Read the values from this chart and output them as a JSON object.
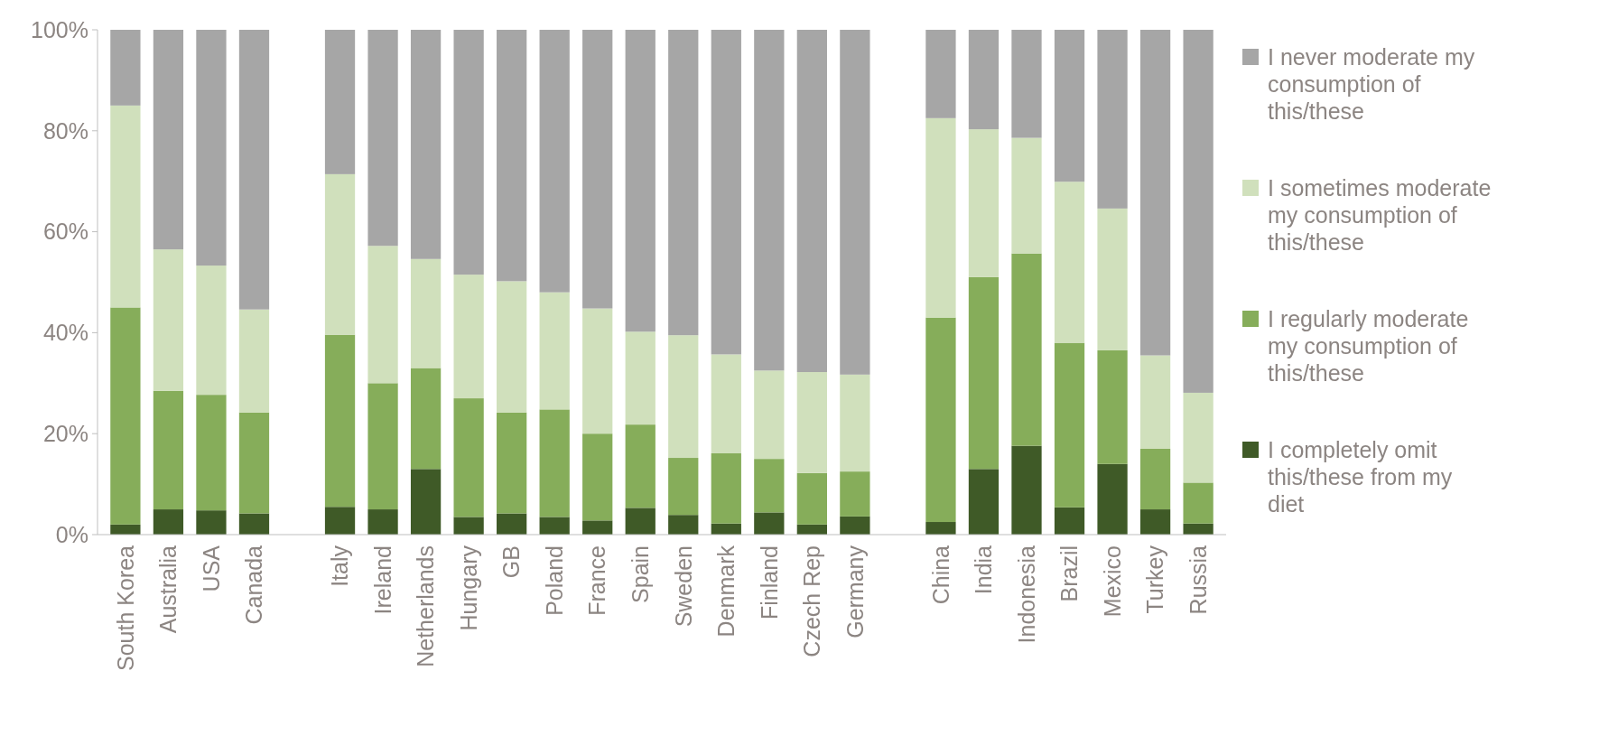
{
  "chart_data": {
    "type": "bar",
    "stacked": true,
    "legend": "right",
    "grid": false,
    "categories": [
      "South Korea",
      "Australia",
      "USA",
      "Canada",
      null,
      "Italy",
      "Ireland",
      "Netherlands",
      "Hungary",
      "GB",
      "Poland",
      "France",
      "Spain",
      "Sweden",
      "Denmark",
      "Finland",
      "Czech Rep",
      "Germany",
      null,
      "China",
      "India",
      "Indonesia",
      "Brazil",
      "Mexico",
      "Turkey",
      "Russia"
    ],
    "ylim": [
      0,
      100
    ],
    "yticks": [
      {
        "value": 0,
        "label": "0%"
      },
      {
        "value": 20,
        "label": "20%"
      },
      {
        "value": 40,
        "label": "40%"
      },
      {
        "value": 60,
        "label": "60%"
      },
      {
        "value": 80,
        "label": "80%"
      },
      {
        "value": 100,
        "label": "100%"
      }
    ],
    "series": [
      {
        "name": "I completely omit this/these from my diet",
        "color": "#3f5a27",
        "values": [
          2,
          5,
          4.8,
          4.2,
          null,
          5.5,
          5,
          13,
          3.5,
          4.2,
          3.5,
          2.8,
          5.3,
          3.9,
          2.2,
          4.4,
          2,
          3.6,
          null,
          2.5,
          13,
          17.6,
          5.4,
          14,
          5,
          2.2
        ]
      },
      {
        "name": "I regularly moderate my consumption of this/these",
        "color": "#86ad5a",
        "values": [
          43,
          23.5,
          22.9,
          20,
          null,
          34.1,
          25,
          20,
          23.5,
          20,
          21.3,
          17.2,
          16.5,
          11.3,
          13.9,
          10.6,
          10.2,
          8.9,
          null,
          40.5,
          38,
          38.1,
          32.6,
          22.5,
          12,
          8.1
        ]
      },
      {
        "name": "I sometimes moderate my consumption of this/these",
        "color": "#d0e0bc",
        "values": [
          40,
          28,
          25.6,
          20.4,
          null,
          31.8,
          27.2,
          21.6,
          24.5,
          26,
          23.2,
          24.8,
          18.4,
          24.3,
          19.6,
          17.5,
          20,
          19.2,
          null,
          39.5,
          29.3,
          22.9,
          31.9,
          28.1,
          18.5,
          17.8
        ]
      },
      {
        "name": "I never moderate my consumption of this/these",
        "color": "#a6a6a6",
        "values": [
          15,
          43.5,
          46.7,
          55.4,
          null,
          28.6,
          42.8,
          45.4,
          48.5,
          49.8,
          52,
          55.2,
          59.8,
          60.5,
          64.3,
          67.5,
          67.8,
          68.3,
          null,
          17.5,
          19.7,
          21.4,
          30.1,
          35.4,
          64.5,
          71.9
        ]
      }
    ]
  }
}
